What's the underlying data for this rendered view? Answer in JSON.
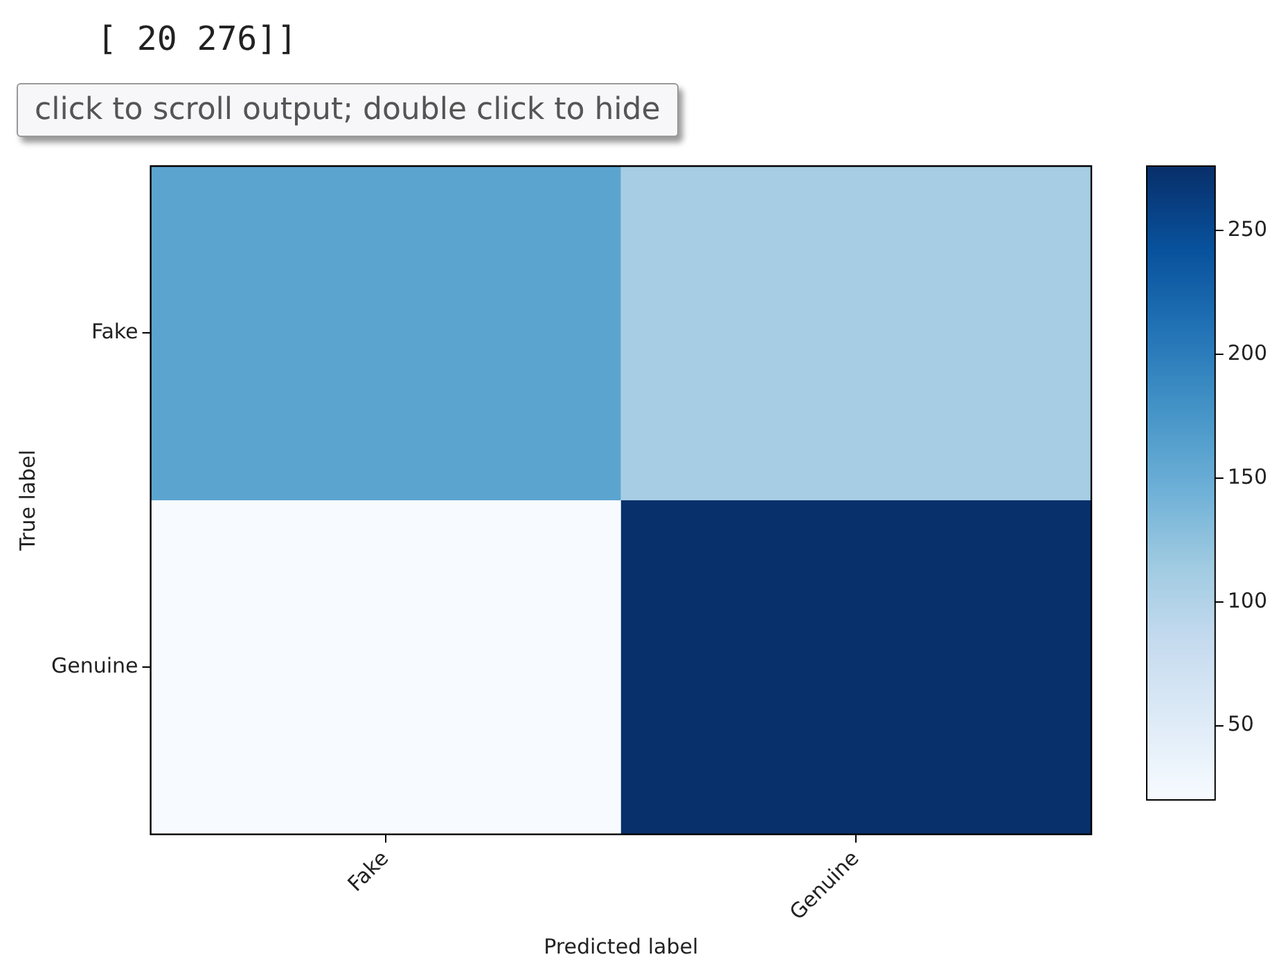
{
  "chart_data": {
    "type": "heatmap",
    "categories": [
      "Fake",
      "Genuine"
    ],
    "y_categories": [
      "Fake",
      "Genuine"
    ],
    "cells": [
      [
        160,
        110
      ],
      [
        20,
        276
      ]
    ],
    "clim": [
      20,
      276
    ],
    "cticks": [
      50,
      100,
      150,
      200,
      250
    ],
    "xlabel": "Predicted label",
    "ylabel": "True label",
    "annotations": [
      "[ 20 276]]",
      "click to scroll output; double click to hide"
    ]
  }
}
